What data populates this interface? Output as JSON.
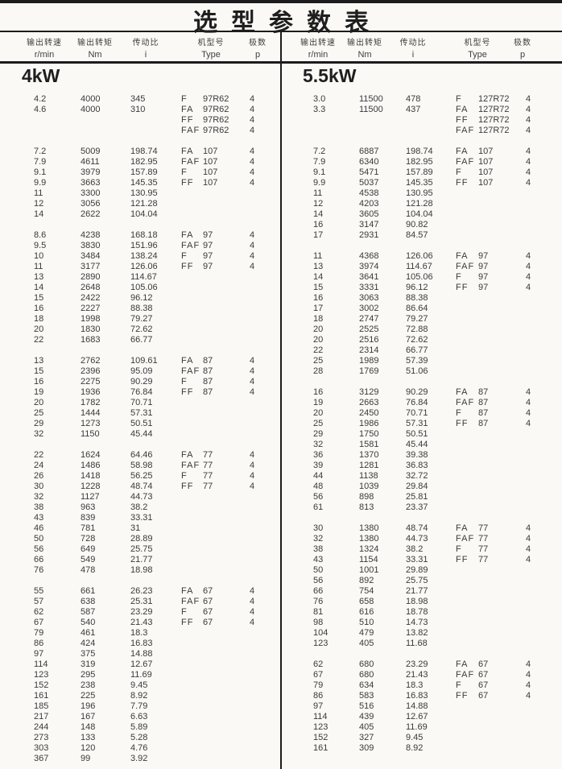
{
  "title": "选型参数表",
  "columns": [
    {
      "zh": "输出转速",
      "en": "r/min"
    },
    {
      "zh": "输出转矩",
      "en": "Nm"
    },
    {
      "zh": "传动比",
      "en": "i"
    },
    {
      "zh": "机型号",
      "en": "Type"
    },
    {
      "zh": "极数",
      "en": "p"
    }
  ],
  "sections": [
    {
      "label": "4kW",
      "groups": [
        [
          [
            "4.2",
            "4000",
            "345",
            "F",
            "97R62",
            "4"
          ],
          [
            "4.6",
            "4000",
            "310",
            "FA",
            "97R62",
            "4"
          ],
          [
            "",
            "",
            "",
            "FF",
            "97R62",
            "4"
          ],
          [
            "",
            "",
            "",
            "FAF",
            "97R62",
            "4"
          ]
        ],
        [
          [
            "7.2",
            "5009",
            "198.74",
            "FA",
            "107",
            "4"
          ],
          [
            "7.9",
            "4611",
            "182.95",
            "FAF",
            "107",
            "4"
          ],
          [
            "9.1",
            "3979",
            "157.89",
            "F",
            "107",
            "4"
          ],
          [
            "9.9",
            "3663",
            "145.35",
            "FF",
            "107",
            "4"
          ],
          [
            "11",
            "3300",
            "130.95",
            "",
            "",
            ""
          ],
          [
            "12",
            "3056",
            "121.28",
            "",
            "",
            ""
          ],
          [
            "14",
            "2622",
            "104.04",
            "",
            "",
            ""
          ]
        ],
        [
          [
            "8.6",
            "4238",
            "168.18",
            "FA",
            "97",
            "4"
          ],
          [
            "9.5",
            "3830",
            "151.96",
            "FAF",
            "97",
            "4"
          ],
          [
            "10",
            "3484",
            "138.24",
            "F",
            "97",
            "4"
          ],
          [
            "11",
            "3177",
            "126.06",
            "FF",
            "97",
            "4"
          ],
          [
            "13",
            "2890",
            "114.67",
            "",
            "",
            ""
          ],
          [
            "14",
            "2648",
            "105.06",
            "",
            "",
            ""
          ],
          [
            "15",
            "2422",
            "96.12",
            "",
            "",
            ""
          ],
          [
            "16",
            "2227",
            "88.38",
            "",
            "",
            ""
          ],
          [
            "18",
            "1998",
            "79.27",
            "",
            "",
            ""
          ],
          [
            "20",
            "1830",
            "72.62",
            "",
            "",
            ""
          ],
          [
            "22",
            "1683",
            "66.77",
            "",
            "",
            ""
          ]
        ],
        [
          [
            "13",
            "2762",
            "109.61",
            "FA",
            "87",
            "4"
          ],
          [
            "15",
            "2396",
            "95.09",
            "FAF",
            "87",
            "4"
          ],
          [
            "16",
            "2275",
            "90.29",
            "F",
            "87",
            "4"
          ],
          [
            "19",
            "1936",
            "76.84",
            "FF",
            "87",
            "4"
          ],
          [
            "20",
            "1782",
            "70.71",
            "",
            "",
            ""
          ],
          [
            "25",
            "1444",
            "57.31",
            "",
            "",
            ""
          ],
          [
            "29",
            "1273",
            "50.51",
            "",
            "",
            ""
          ],
          [
            "32",
            "1150",
            "45.44",
            "",
            "",
            ""
          ]
        ],
        [
          [
            "22",
            "1624",
            "64.46",
            "FA",
            "77",
            "4"
          ],
          [
            "24",
            "1486",
            "58.98",
            "FAF",
            "77",
            "4"
          ],
          [
            "26",
            "1418",
            "56.25",
            "F",
            "77",
            "4"
          ],
          [
            "30",
            "1228",
            "48.74",
            "FF",
            "77",
            "4"
          ],
          [
            "32",
            "1127",
            "44.73",
            "",
            "",
            ""
          ],
          [
            "38",
            "963",
            "38.2",
            "",
            "",
            ""
          ],
          [
            "43",
            "839",
            "33.31",
            "",
            "",
            ""
          ],
          [
            "46",
            "781",
            "31",
            "",
            "",
            ""
          ],
          [
            "50",
            "728",
            "28.89",
            "",
            "",
            ""
          ],
          [
            "56",
            "649",
            "25.75",
            "",
            "",
            ""
          ],
          [
            "66",
            "549",
            "21.77",
            "",
            "",
            ""
          ],
          [
            "76",
            "478",
            "18.98",
            "",
            "",
            ""
          ]
        ],
        [
          [
            "55",
            "661",
            "26.23",
            "FA",
            "67",
            "4"
          ],
          [
            "57",
            "638",
            "25.31",
            "FAF",
            "67",
            "4"
          ],
          [
            "62",
            "587",
            "23.29",
            "F",
            "67",
            "4"
          ],
          [
            "67",
            "540",
            "21.43",
            "FF",
            "67",
            "4"
          ],
          [
            "79",
            "461",
            "18.3",
            "",
            "",
            ""
          ],
          [
            "86",
            "424",
            "16.83",
            "",
            "",
            ""
          ],
          [
            "97",
            "375",
            "14.88",
            "",
            "",
            ""
          ],
          [
            "114",
            "319",
            "12.67",
            "",
            "",
            ""
          ],
          [
            "123",
            "295",
            "11.69",
            "",
            "",
            ""
          ],
          [
            "152",
            "238",
            "9.45",
            "",
            "",
            ""
          ],
          [
            "161",
            "225",
            "8.92",
            "",
            "",
            ""
          ],
          [
            "185",
            "196",
            "7.79",
            "",
            "",
            ""
          ],
          [
            "217",
            "167",
            "6.63",
            "",
            "",
            ""
          ],
          [
            "244",
            "148",
            "5.89",
            "",
            "",
            ""
          ],
          [
            "273",
            "133",
            "5.28",
            "",
            "",
            ""
          ],
          [
            "303",
            "120",
            "4.76",
            "",
            "",
            ""
          ],
          [
            "367",
            "99",
            "3.92",
            "",
            "",
            ""
          ]
        ]
      ]
    },
    {
      "label": "5.5kW",
      "groups": [
        [
          [
            "3.0",
            "11500",
            "478",
            "F",
            "127R72",
            "4"
          ],
          [
            "3.3",
            "11500",
            "437",
            "FA",
            "127R72",
            "4"
          ],
          [
            "",
            "",
            "",
            "FF",
            "127R72",
            "4"
          ],
          [
            "",
            "",
            "",
            "FAF",
            "127R72",
            "4"
          ]
        ],
        [
          [
            "7.2",
            "6887",
            "198.74",
            "FA",
            "107",
            "4"
          ],
          [
            "7.9",
            "6340",
            "182.95",
            "FAF",
            "107",
            "4"
          ],
          [
            "9.1",
            "5471",
            "157.89",
            "F",
            "107",
            "4"
          ],
          [
            "9.9",
            "5037",
            "145.35",
            "FF",
            "107",
            "4"
          ],
          [
            "11",
            "4538",
            "130.95",
            "",
            "",
            ""
          ],
          [
            "12",
            "4203",
            "121.28",
            "",
            "",
            ""
          ],
          [
            "14",
            "3605",
            "104.04",
            "",
            "",
            ""
          ],
          [
            "16",
            "3147",
            "90.82",
            "",
            "",
            ""
          ],
          [
            "17",
            "2931",
            "84.57",
            "",
            "",
            ""
          ]
        ],
        [
          [
            "11",
            "4368",
            "126.06",
            "FA",
            "97",
            "4"
          ],
          [
            "13",
            "3974",
            "114.67",
            "FAF",
            "97",
            "4"
          ],
          [
            "14",
            "3641",
            "105.06",
            "F",
            "97",
            "4"
          ],
          [
            "15",
            "3331",
            "96.12",
            "FF",
            "97",
            "4"
          ],
          [
            "16",
            "3063",
            "88.38",
            "",
            "",
            ""
          ],
          [
            "17",
            "3002",
            "86.64",
            "",
            "",
            ""
          ],
          [
            "18",
            "2747",
            "79.27",
            "",
            "",
            ""
          ],
          [
            "20",
            "2525",
            "72.88",
            "",
            "",
            ""
          ],
          [
            "20",
            "2516",
            "72.62",
            "",
            "",
            ""
          ],
          [
            "22",
            "2314",
            "66.77",
            "",
            "",
            ""
          ],
          [
            "25",
            "1989",
            "57.39",
            "",
            "",
            ""
          ],
          [
            "28",
            "1769",
            "51.06",
            "",
            "",
            ""
          ]
        ],
        [
          [
            "16",
            "3129",
            "90.29",
            "FA",
            "87",
            "4"
          ],
          [
            "19",
            "2663",
            "76.84",
            "FAF",
            "87",
            "4"
          ],
          [
            "20",
            "2450",
            "70.71",
            "F",
            "87",
            "4"
          ],
          [
            "25",
            "1986",
            "57.31",
            "FF",
            "87",
            "4"
          ],
          [
            "29",
            "1750",
            "50.51",
            "",
            "",
            ""
          ],
          [
            "32",
            "1581",
            "45.44",
            "",
            "",
            ""
          ],
          [
            "36",
            "1370",
            "39.38",
            "",
            "",
            ""
          ],
          [
            "39",
            "1281",
            "36.83",
            "",
            "",
            ""
          ],
          [
            "44",
            "1138",
            "32.72",
            "",
            "",
            ""
          ],
          [
            "48",
            "1039",
            "29.84",
            "",
            "",
            ""
          ],
          [
            "56",
            "898",
            "25.81",
            "",
            "",
            ""
          ],
          [
            "61",
            "813",
            "23.37",
            "",
            "",
            ""
          ]
        ],
        [
          [
            "30",
            "1380",
            "48.74",
            "FA",
            "77",
            "4"
          ],
          [
            "32",
            "1380",
            "44.73",
            "FAF",
            "77",
            "4"
          ],
          [
            "38",
            "1324",
            "38.2",
            "F",
            "77",
            "4"
          ],
          [
            "43",
            "1154",
            "33.31",
            "FF",
            "77",
            "4"
          ],
          [
            "50",
            "1001",
            "29.89",
            "",
            "",
            ""
          ],
          [
            "56",
            "892",
            "25.75",
            "",
            "",
            ""
          ],
          [
            "66",
            "754",
            "21.77",
            "",
            "",
            ""
          ],
          [
            "76",
            "658",
            "18.98",
            "",
            "",
            ""
          ],
          [
            "81",
            "616",
            "18.78",
            "",
            "",
            ""
          ],
          [
            "98",
            "510",
            "14.73",
            "",
            "",
            ""
          ],
          [
            "104",
            "479",
            "13.82",
            "",
            "",
            ""
          ],
          [
            "123",
            "405",
            "11.68",
            "",
            "",
            ""
          ]
        ],
        [
          [
            "62",
            "680",
            "23.29",
            "FA",
            "67",
            "4"
          ],
          [
            "67",
            "680",
            "21.43",
            "FAF",
            "67",
            "4"
          ],
          [
            "79",
            "634",
            "18.3",
            "F",
            "67",
            "4"
          ],
          [
            "86",
            "583",
            "16.83",
            "FF",
            "67",
            "4"
          ],
          [
            "97",
            "516",
            "14.88",
            "",
            "",
            ""
          ],
          [
            "114",
            "439",
            "12.67",
            "",
            "",
            ""
          ],
          [
            "123",
            "405",
            "11.69",
            "",
            "",
            ""
          ],
          [
            "152",
            "327",
            "9.45",
            "",
            "",
            ""
          ],
          [
            "161",
            "309",
            "8.92",
            "",
            "",
            ""
          ]
        ]
      ]
    }
  ]
}
